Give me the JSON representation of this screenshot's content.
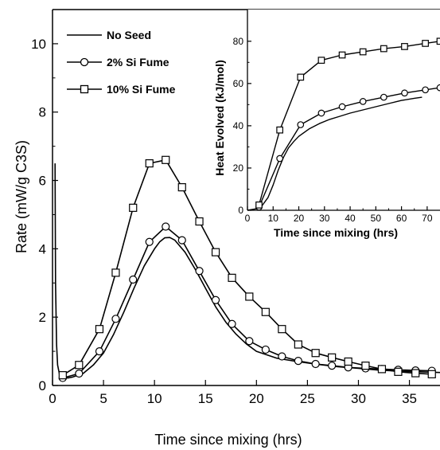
{
  "chart_data": [
    {
      "type": "line",
      "xlabel": "Time since mixing (hrs)",
      "ylabel": "Rate (mW/g C3S)",
      "xlim": [
        0,
        38
      ],
      "ylim": [
        0,
        11
      ],
      "xticks": [
        "0",
        "5",
        "10",
        "15",
        "20",
        "25",
        "30",
        "35"
      ],
      "yticks": [
        "0",
        "2",
        "4",
        "6",
        "8",
        "10"
      ],
      "legend": {
        "placement": "top-left"
      },
      "series": [
        {
          "name": "No Seed",
          "marker": "none",
          "x": [
            0.25,
            0.3,
            0.4,
            0.5,
            0.7,
            1,
            1.5,
            2,
            3,
            4,
            5,
            6,
            7,
            8,
            9,
            10,
            10.5,
            11,
            11.5,
            12,
            13,
            14,
            15,
            16,
            17,
            18,
            19,
            20,
            22,
            24,
            26,
            28,
            30,
            32,
            34,
            36,
            38
          ],
          "y": [
            6.5,
            3.0,
            1.2,
            0.6,
            0.3,
            0.25,
            0.22,
            0.25,
            0.35,
            0.6,
            0.95,
            1.5,
            2.15,
            2.85,
            3.5,
            4.0,
            4.2,
            4.32,
            4.33,
            4.25,
            3.9,
            3.4,
            2.85,
            2.3,
            1.85,
            1.5,
            1.22,
            1.0,
            0.8,
            0.7,
            0.62,
            0.55,
            0.5,
            0.45,
            0.42,
            0.4,
            0.38
          ]
        },
        {
          "name": "2% Si Fume",
          "marker": "circle",
          "x": [
            1,
            2.6,
            4.6,
            6.2,
            7.9,
            9.5,
            11.1,
            12.7,
            14.4,
            16.0,
            17.6,
            19.3,
            20.9,
            22.5,
            24.1,
            25.8,
            27.4,
            29.0,
            30.7,
            32.3,
            33.9,
            35.6,
            37.2
          ],
          "y": [
            0.22,
            0.35,
            1.0,
            1.95,
            3.1,
            4.2,
            4.65,
            4.25,
            3.35,
            2.5,
            1.8,
            1.3,
            1.05,
            0.85,
            0.72,
            0.63,
            0.58,
            0.53,
            0.5,
            0.48,
            0.46,
            0.44,
            0.43
          ]
        },
        {
          "name": "10% Si Fume",
          "marker": "square",
          "x": [
            1,
            2.6,
            4.6,
            6.2,
            7.9,
            9.5,
            11.1,
            12.7,
            14.4,
            16.0,
            17.6,
            19.3,
            20.9,
            22.5,
            24.1,
            25.8,
            27.4,
            29.0,
            30.7,
            32.3,
            33.9,
            35.6,
            37.2
          ],
          "y": [
            0.3,
            0.6,
            1.65,
            3.3,
            5.2,
            6.5,
            6.6,
            5.8,
            4.8,
            3.9,
            3.15,
            2.6,
            2.15,
            1.65,
            1.2,
            0.95,
            0.82,
            0.7,
            0.58,
            0.48,
            0.4,
            0.36,
            0.33
          ]
        }
      ]
    },
    {
      "type": "line",
      "xlabel": "Time since mixing (hrs)",
      "ylabel": "Heat Evolved (kJ/mol)",
      "xlim": [
        0,
        75
      ],
      "ylim": [
        0,
        95
      ],
      "xticks": [
        "0",
        "10",
        "20",
        "30",
        "40",
        "50",
        "60",
        "70"
      ],
      "yticks": [
        "0",
        "20",
        "40",
        "60",
        "80"
      ],
      "series": [
        {
          "name": "No Seed",
          "marker": "none",
          "x": [
            0,
            5,
            8,
            10,
            12,
            14,
            16,
            18,
            20,
            24,
            28,
            32,
            36,
            40,
            45,
            50,
            55,
            60,
            65,
            68
          ],
          "y": [
            0,
            1,
            6,
            12,
            19,
            25,
            29.5,
            32.5,
            35,
            38.5,
            41,
            43,
            44.5,
            46,
            47.5,
            49,
            50.5,
            52,
            53,
            53.5
          ]
        },
        {
          "name": "2% Si Fume",
          "marker": "circle",
          "x": [
            4.5,
            12.6,
            20.7,
            28.8,
            36.9,
            45.0,
            53.1,
            61.2,
            69.3,
            75
          ],
          "y": [
            1.5,
            24.5,
            40.5,
            46,
            49,
            51.5,
            53.5,
            55.5,
            57,
            58
          ]
        },
        {
          "name": "10% Si Fume",
          "marker": "square",
          "x": [
            4.5,
            12.6,
            20.7,
            28.8,
            36.9,
            45.0,
            53.1,
            61.2,
            69.3,
            75
          ],
          "y": [
            2.5,
            38,
            63,
            71,
            73.5,
            75,
            76.5,
            77.5,
            79,
            80
          ]
        }
      ]
    }
  ]
}
